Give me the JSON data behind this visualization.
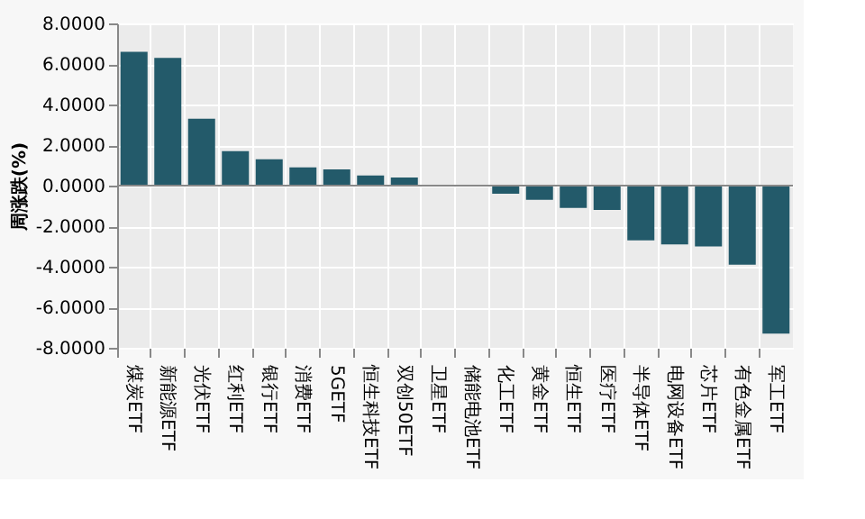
{
  "chart_data": {
    "type": "bar",
    "ylabel": "周涨跌(%)",
    "categories": [
      "煤炭ETF",
      "新能源ETF",
      "光伏ETF",
      "红利ETF",
      "银行ETF",
      "消费ETF",
      "5GETF",
      "恒生科技ETF",
      "双创50ETF",
      "卫星ETF",
      "储能电池ETF",
      "化工ETF",
      "黄金ETF",
      "恒生ETF",
      "医疗ETF",
      "半导体ETF",
      "电网设备ETF",
      "芯片ETF",
      "有色金属ETF",
      "军工ETF"
    ],
    "values": [
      6.6,
      6.3,
      3.3,
      1.7,
      1.3,
      0.9,
      0.8,
      0.5,
      0.4,
      0,
      0,
      -0.4,
      -0.7,
      -1.1,
      -1.2,
      -2.7,
      -2.9,
      -3.0,
      -3.9,
      -7.3
    ],
    "color": "#235a6a",
    "ylim": [
      -8,
      8
    ],
    "yticks": [
      {
        "value": -8,
        "label": "-8.0000"
      },
      {
        "value": -6,
        "label": "-6.0000"
      },
      {
        "value": -4,
        "label": "-4.0000"
      },
      {
        "value": -2,
        "label": "-2.0000"
      },
      {
        "value": 0,
        "label": "0.0000"
      },
      {
        "value": 2,
        "label": "2.0000"
      },
      {
        "value": 4,
        "label": "4.0000"
      },
      {
        "value": 6,
        "label": "6.0000"
      },
      {
        "value": 8,
        "label": "8.0000"
      }
    ],
    "grid": true
  }
}
